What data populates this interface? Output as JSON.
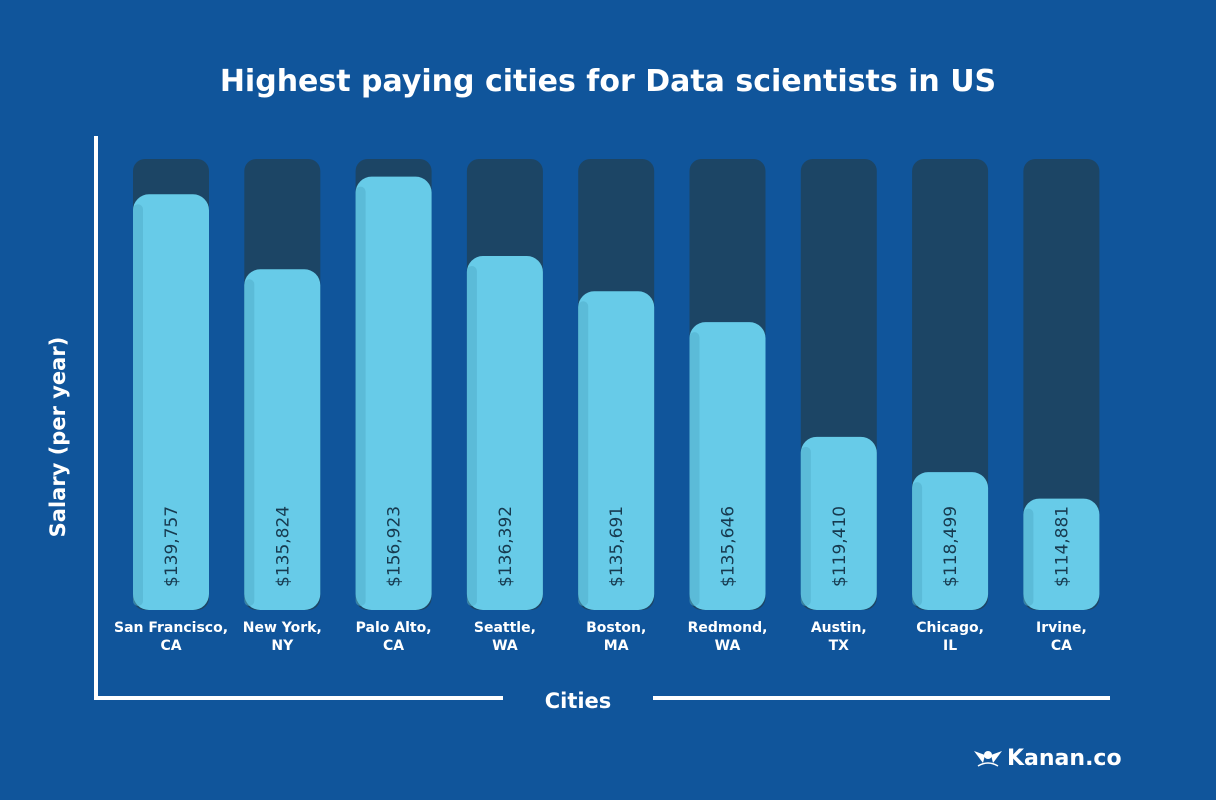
{
  "chart_data": {
    "type": "bar",
    "title": "Highest paying cities for Data scientists in US",
    "xlabel": "Cities",
    "ylabel": "Salary (per year)",
    "categories": [
      [
        "San Francisco,",
        "CA"
      ],
      [
        "New York,",
        "NY"
      ],
      [
        "Palo Alto,",
        "CA"
      ],
      [
        "Seattle,",
        "WA"
      ],
      [
        "Boston,",
        "MA"
      ],
      [
        "Redmond,",
        "WA"
      ],
      [
        "Austin,",
        "TX"
      ],
      [
        "Chicago,",
        "IL"
      ],
      [
        "Irvine,",
        "CA"
      ]
    ],
    "values": [
      139757,
      135824,
      156923,
      136392,
      135691,
      135646,
      119410,
      118499,
      114881
    ],
    "value_labels": [
      "$139,757",
      "$135,824",
      "$156,923",
      "$136,392",
      "$135,691",
      "$135,646",
      "$119,410",
      "$118,499",
      "$114,881"
    ],
    "fill_fraction": [
      0.92,
      0.75,
      0.96,
      0.78,
      0.7,
      0.63,
      0.37,
      0.29,
      0.23
    ],
    "colors": {
      "background": "#10559b",
      "bar_fill": "#67cbe8",
      "bar_fill_shade": "#52aecb",
      "bar_track": "#1c4565",
      "axis": "#ffffff"
    }
  },
  "brand": {
    "logo_icon": "kanan-logo-icon",
    "name": "Kanan.co"
  }
}
